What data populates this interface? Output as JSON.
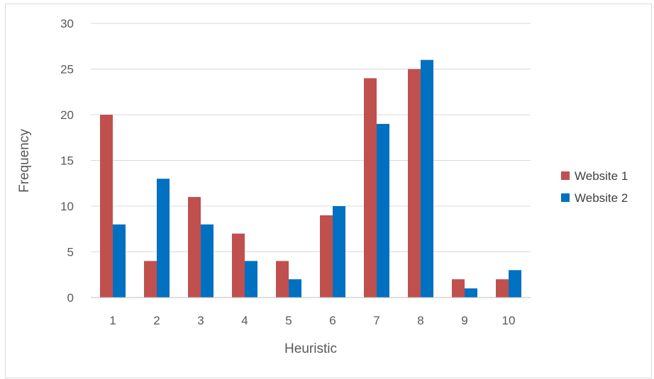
{
  "chart_data": {
    "type": "bar",
    "title": "",
    "xlabel": "Heuristic",
    "ylabel": "Frequency",
    "categories": [
      "1",
      "2",
      "3",
      "4",
      "5",
      "6",
      "7",
      "8",
      "9",
      "10"
    ],
    "ylim": [
      0,
      30
    ],
    "yticks": [
      0,
      5,
      10,
      15,
      20,
      25,
      30
    ],
    "grid": true,
    "legend_position": "right",
    "series": [
      {
        "name": "Website 1",
        "color": "#c0504d",
        "values": [
          20,
          4,
          11,
          7,
          4,
          9,
          24,
          25,
          2,
          2
        ]
      },
      {
        "name": "Website 2",
        "color": "#0070c0",
        "values": [
          8,
          13,
          8,
          4,
          2,
          10,
          19,
          26,
          1,
          3
        ]
      }
    ]
  }
}
